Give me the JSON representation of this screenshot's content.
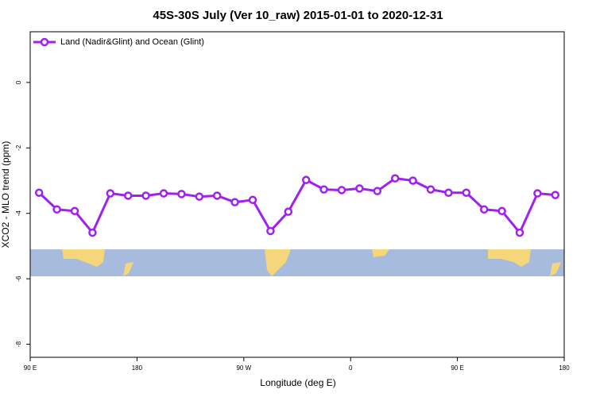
{
  "chart_data": {
    "type": "line",
    "title": "45S-30S July (Ver 10_raw)   2015-01-01 to 2020-12-31",
    "x_label": "Longitude (deg E)",
    "y_label": "XCO2 - MLO trend (ppm)",
    "x": [
      97.5,
      112.5,
      127.5,
      142.5,
      157.5,
      172.5,
      187.5,
      202.5,
      217.5,
      232.5,
      247.5,
      262.5,
      277.5,
      292.5,
      307.5,
      322.5,
      337.5,
      352.5,
      367.5,
      382.5,
      397.5,
      412.5,
      427.5,
      442.5,
      457.5,
      472.5,
      487.5,
      502.5,
      517.5,
      532.5
    ],
    "series": [
      {
        "name": "Land (Nadir&Glint) and Ocean (Glint)",
        "color": "#a020f0",
        "values": [
          -3.37,
          -3.88,
          -3.93,
          -4.59,
          -3.39,
          -3.46,
          -3.46,
          -3.39,
          -3.41,
          -3.49,
          -3.46,
          -3.66,
          -3.59,
          -4.54,
          -3.95,
          -2.98,
          -3.27,
          -3.29,
          -3.24,
          -3.32,
          -2.93,
          -3.0,
          -3.27,
          -3.37,
          -3.37,
          -3.88,
          -3.93,
          -4.59,
          -3.39,
          -3.44
        ]
      }
    ],
    "xlim": [
      90,
      540
    ],
    "xticks": [
      {
        "value": 90,
        "label": "90 E"
      },
      180,
      {
        "value": 270,
        "label": "90 W"
      },
      {
        "value": 360,
        "label": "0"
      },
      {
        "value": 450,
        "label": "90 E"
      },
      {
        "value": 540,
        "label": "180"
      }
    ],
    "ylim": [
      -8.4,
      1.55
    ],
    "yticks": [
      0,
      -2,
      -4,
      -6,
      -8
    ],
    "legend": "top-left"
  }
}
